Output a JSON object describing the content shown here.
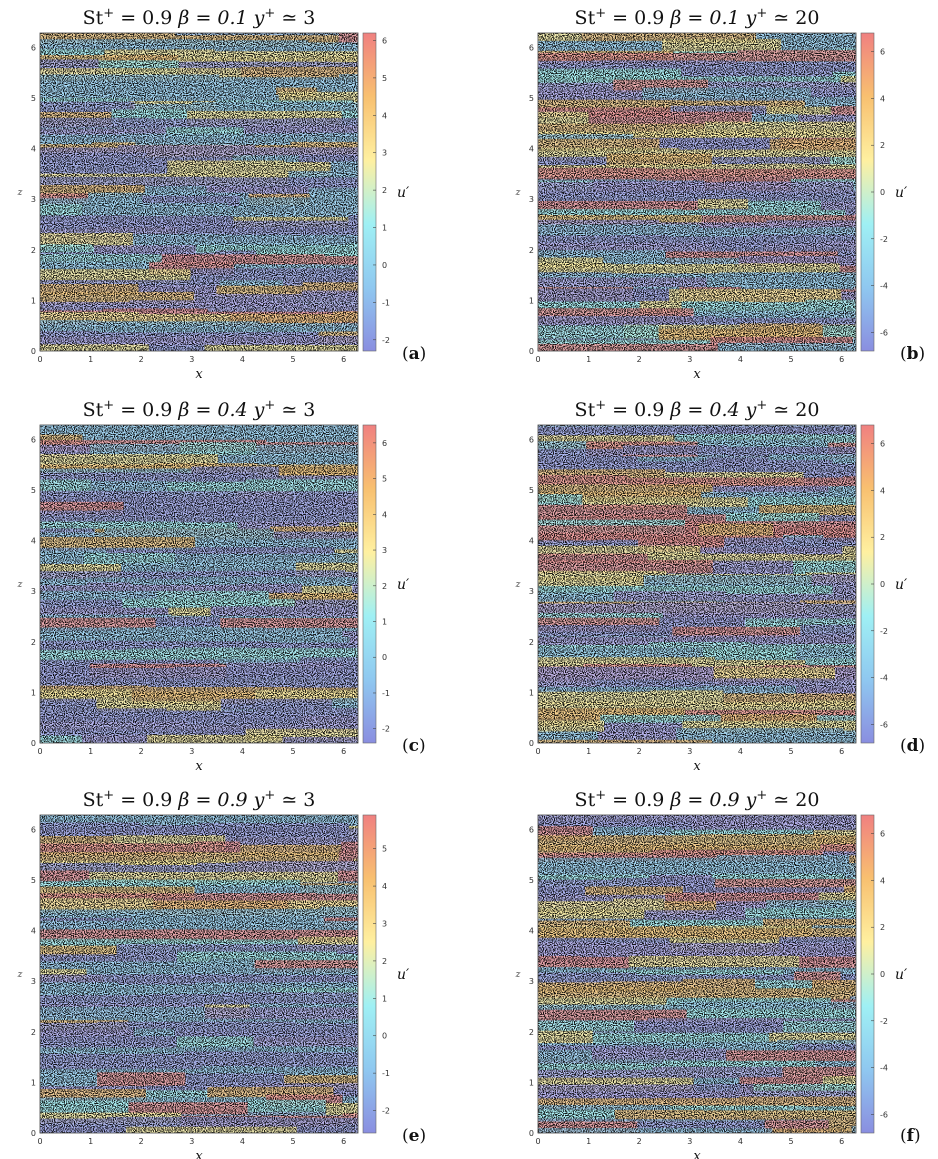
{
  "chart_data": [
    {
      "type": "heatmap",
      "panel": "a",
      "title_parts": {
        "st": "St",
        "st_sup": "+",
        "st_val": " = 0.9",
        "beta": "β = 0.1",
        "yp": "y",
        "yp_sup": "+",
        "yp_val": " ≃ 3"
      },
      "xlabel": "x",
      "ylabel": "z",
      "colorbar_label": "u′",
      "xlim": [
        0,
        6.2832
      ],
      "ylim": [
        0,
        6.2832
      ],
      "xticks": [
        0,
        1,
        2,
        3,
        4,
        5,
        6
      ],
      "yticks": [
        0,
        1,
        2,
        3,
        4,
        5,
        6
      ],
      "clim": [
        -2.3,
        6.2
      ],
      "colorbar_ticks": [
        -2,
        -1,
        0,
        1,
        2,
        3,
        4,
        5,
        6
      ],
      "colormap": [
        "#8a8ee0",
        "#8fc8f0",
        "#9ff0f4",
        "#fff0a0",
        "#f8c070",
        "#f08080"
      ]
    },
    {
      "type": "heatmap",
      "panel": "b",
      "title_parts": {
        "st": "St",
        "st_sup": "+",
        "st_val": " = 0.9",
        "beta": "β = 0.1",
        "yp": "y",
        "yp_sup": "+",
        "yp_val": " ≃ 20"
      },
      "xlabel": "x",
      "ylabel": "z",
      "colorbar_label": "u′",
      "xlim": [
        0,
        6.2832
      ],
      "ylim": [
        0,
        6.2832
      ],
      "xticks": [
        0,
        1,
        2,
        3,
        4,
        5,
        6
      ],
      "yticks": [
        0,
        1,
        2,
        3,
        4,
        5,
        6
      ],
      "clim": [
        -6.8,
        6.8
      ],
      "colorbar_ticks": [
        -6,
        -4,
        -2,
        0,
        2,
        4,
        6
      ],
      "colormap": [
        "#8a8ee0",
        "#8fc8f0",
        "#9ff0f4",
        "#fff0a0",
        "#f8c070",
        "#f08080"
      ]
    },
    {
      "type": "heatmap",
      "panel": "c",
      "title_parts": {
        "st": "St",
        "st_sup": "+",
        "st_val": " = 0.9",
        "beta": "β = 0.4",
        "yp": "y",
        "yp_sup": "+",
        "yp_val": " ≃ 3"
      },
      "xlabel": "x",
      "ylabel": "z",
      "colorbar_label": "u′",
      "xlim": [
        0,
        6.2832
      ],
      "ylim": [
        0,
        6.2832
      ],
      "xticks": [
        0,
        1,
        2,
        3,
        4,
        5,
        6
      ],
      "yticks": [
        0,
        1,
        2,
        3,
        4,
        5,
        6
      ],
      "clim": [
        -2.4,
        6.5
      ],
      "colorbar_ticks": [
        -2,
        -1,
        0,
        1,
        2,
        3,
        4,
        5,
        6
      ],
      "colormap": [
        "#8a8ee0",
        "#8fc8f0",
        "#9ff0f4",
        "#fff0a0",
        "#f8c070",
        "#f08080"
      ]
    },
    {
      "type": "heatmap",
      "panel": "d",
      "title_parts": {
        "st": "St",
        "st_sup": "+",
        "st_val": " = 0.9",
        "beta": "β = 0.4",
        "yp": "y",
        "yp_sup": "+",
        "yp_val": " ≃ 20"
      },
      "xlabel": "x",
      "ylabel": "z",
      "colorbar_label": "u′",
      "xlim": [
        0,
        6.2832
      ],
      "ylim": [
        0,
        6.2832
      ],
      "xticks": [
        0,
        1,
        2,
        3,
        4,
        5,
        6
      ],
      "yticks": [
        0,
        1,
        2,
        3,
        4,
        5,
        6
      ],
      "clim": [
        -6.8,
        6.8
      ],
      "colorbar_ticks": [
        -6,
        -4,
        -2,
        0,
        2,
        4,
        6
      ],
      "colormap": [
        "#8a8ee0",
        "#8fc8f0",
        "#9ff0f4",
        "#fff0a0",
        "#f8c070",
        "#f08080"
      ]
    },
    {
      "type": "heatmap",
      "panel": "e",
      "title_parts": {
        "st": "St",
        "st_sup": "+",
        "st_val": " = 0.9",
        "beta": "β = 0.9",
        "yp": "y",
        "yp_sup": "+",
        "yp_val": " ≃ 3"
      },
      "xlabel": "x",
      "ylabel": "z",
      "colorbar_label": "u′",
      "xlim": [
        0,
        6.2832
      ],
      "ylim": [
        0,
        6.2832
      ],
      "xticks": [
        0,
        1,
        2,
        3,
        4,
        5,
        6
      ],
      "yticks": [
        0,
        1,
        2,
        3,
        4,
        5,
        6
      ],
      "clim": [
        -2.6,
        5.9
      ],
      "colorbar_ticks": [
        -2,
        -1,
        0,
        1,
        2,
        3,
        4,
        5
      ],
      "colormap": [
        "#8a8ee0",
        "#8fc8f0",
        "#9ff0f4",
        "#fff0a0",
        "#f8c070",
        "#f08080"
      ]
    },
    {
      "type": "heatmap",
      "panel": "f",
      "title_parts": {
        "st": "St",
        "st_sup": "+",
        "st_val": " = 0.9",
        "beta": "β = 0.9",
        "yp": "y",
        "yp_sup": "+",
        "yp_val": " ≃ 20"
      },
      "xlabel": "x",
      "ylabel": "z",
      "colorbar_label": "u′",
      "xlim": [
        0,
        6.2832
      ],
      "ylim": [
        0,
        6.2832
      ],
      "xticks": [
        0,
        1,
        2,
        3,
        4,
        5,
        6
      ],
      "yticks": [
        0,
        1,
        2,
        3,
        4,
        5,
        6
      ],
      "clim": [
        -6.8,
        6.8
      ],
      "colorbar_ticks": [
        -6,
        -4,
        -2,
        0,
        2,
        4,
        6
      ],
      "colormap": [
        "#8a8ee0",
        "#8fc8f0",
        "#9ff0f4",
        "#fff0a0",
        "#f8c070",
        "#f08080"
      ]
    }
  ]
}
